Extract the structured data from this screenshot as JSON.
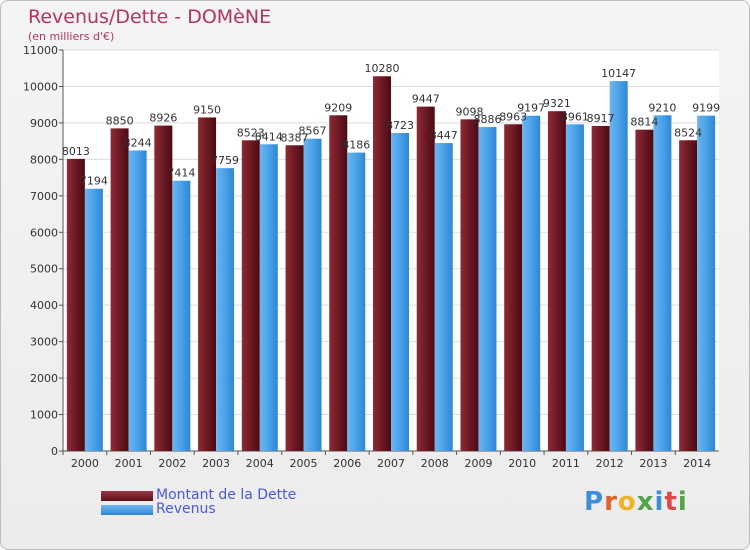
{
  "title": "Revenus/Dette - DOMèNE",
  "subtitle": "(en milliers d'€)",
  "colors": {
    "dette": "#6b1a24",
    "revenus": "#4aa2e8",
    "title": "#b5335f",
    "legend_text": "#4a5ad6"
  },
  "legend": {
    "dette_label": "Montant de la Dette",
    "revenus_label": "Revenus"
  },
  "logo": {
    "text": "Proxiti"
  },
  "chart_data": {
    "type": "bar",
    "title": "Revenus/Dette - DOMèNE",
    "subtitle": "(en milliers d'€)",
    "categories": [
      "2000",
      "2001",
      "2002",
      "2003",
      "2004",
      "2005",
      "2006",
      "2007",
      "2008",
      "2009",
      "2010",
      "2011",
      "2012",
      "2013",
      "2014"
    ],
    "series": [
      {
        "name": "Montant de la Dette",
        "values": [
          8013,
          8850,
          8926,
          9150,
          8523,
          8387,
          9209,
          10280,
          9447,
          9098,
          8963,
          9321,
          8917,
          8814,
          8524
        ]
      },
      {
        "name": "Revenus",
        "values": [
          7194,
          8244,
          7414,
          7759,
          8414,
          8567,
          8186,
          8723,
          8447,
          8886,
          9197,
          8961,
          10147,
          9210,
          9199
        ]
      }
    ],
    "ylim": [
      0,
      11000
    ],
    "yticks": [
      0,
      1000,
      2000,
      3000,
      4000,
      5000,
      6000,
      7000,
      8000,
      9000,
      10000,
      11000
    ],
    "grid": true,
    "legend_position": "bottom-left"
  }
}
